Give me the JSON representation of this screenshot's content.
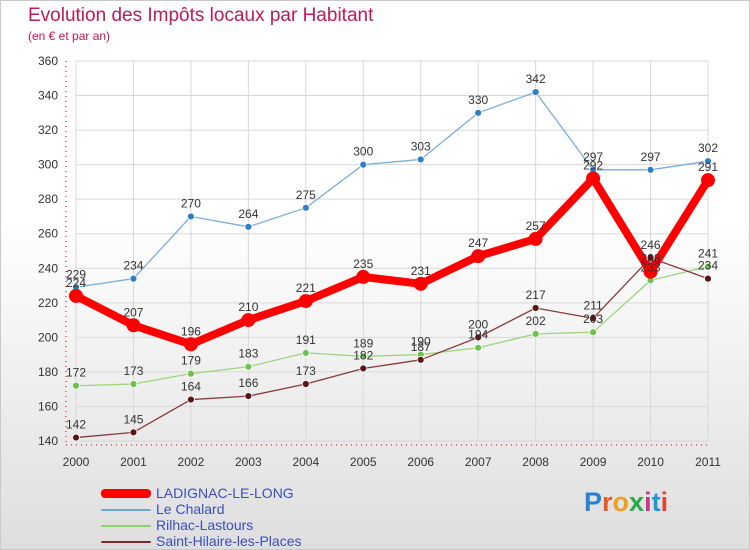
{
  "header": {
    "title": "Evolution des Impôts locaux par Habitant",
    "subtitle": "(en € et par an)"
  },
  "brand": {
    "text": "Proxiti",
    "letter_colors": [
      "#2c7fd1",
      "#e65a2a",
      "#f0a020",
      "#2aa84a",
      "#c43a8a",
      "#1f9ad6",
      "#e2442f"
    ]
  },
  "legend": {
    "items": [
      {
        "label": "LADIGNAC-LE-LONG",
        "color": "#ff0000",
        "thick": true
      },
      {
        "label": "Le Chalard",
        "color": "#6ea6d6",
        "thick": false
      },
      {
        "label": "Rilhac-Lastours",
        "color": "#8ed46e",
        "thick": false
      },
      {
        "label": "Saint-Hilaire-les-Places",
        "color": "#7a2a2a",
        "thick": false
      }
    ]
  },
  "chart_data": {
    "type": "line",
    "title": "Evolution des Impôts locaux par Habitant",
    "subtitle": "(en € et par an)",
    "xlabel": "",
    "ylabel": "",
    "x": [
      "2000",
      "2001",
      "2002",
      "2003",
      "2004",
      "2005",
      "2006",
      "2007",
      "2008",
      "2009",
      "2010",
      "2011"
    ],
    "ylim": [
      140,
      360
    ],
    "yticks": [
      140,
      160,
      180,
      200,
      220,
      240,
      260,
      280,
      300,
      320,
      340,
      360
    ],
    "grid": true,
    "legend_position": "bottom-left",
    "series": [
      {
        "name": "LADIGNAC-LE-LONG",
        "color": "#ff0000",
        "marker_color": "#ff0000",
        "label_color": "#333333",
        "width": 8,
        "marker": 7,
        "values": [
          224,
          207,
          196,
          210,
          221,
          235,
          231,
          247,
          257,
          292,
          238,
          291
        ]
      },
      {
        "name": "Le Chalard",
        "color": "#7aaedd",
        "marker_color": "#2f7fc8",
        "label_color": "#333333",
        "width": 1.3,
        "marker": 3.5,
        "values": [
          229,
          234,
          270,
          264,
          275,
          300,
          303,
          330,
          342,
          297,
          297,
          302
        ]
      },
      {
        "name": "Rilhac-Lastours",
        "color": "#9ad67a",
        "marker_color": "#6cc24a",
        "label_color": "#333333",
        "width": 1.3,
        "marker": 3.5,
        "values": [
          172,
          173,
          179,
          183,
          191,
          189,
          190,
          194,
          202,
          203,
          233,
          241
        ]
      },
      {
        "name": "Saint-Hilaire-les-Places",
        "color": "#8a3a3a",
        "marker_color": "#5a1414",
        "label_color": "#333333",
        "width": 1.3,
        "marker": 3.5,
        "values": [
          142,
          145,
          164,
          166,
          173,
          182,
          187,
          200,
          217,
          211,
          246,
          234
        ]
      }
    ]
  }
}
